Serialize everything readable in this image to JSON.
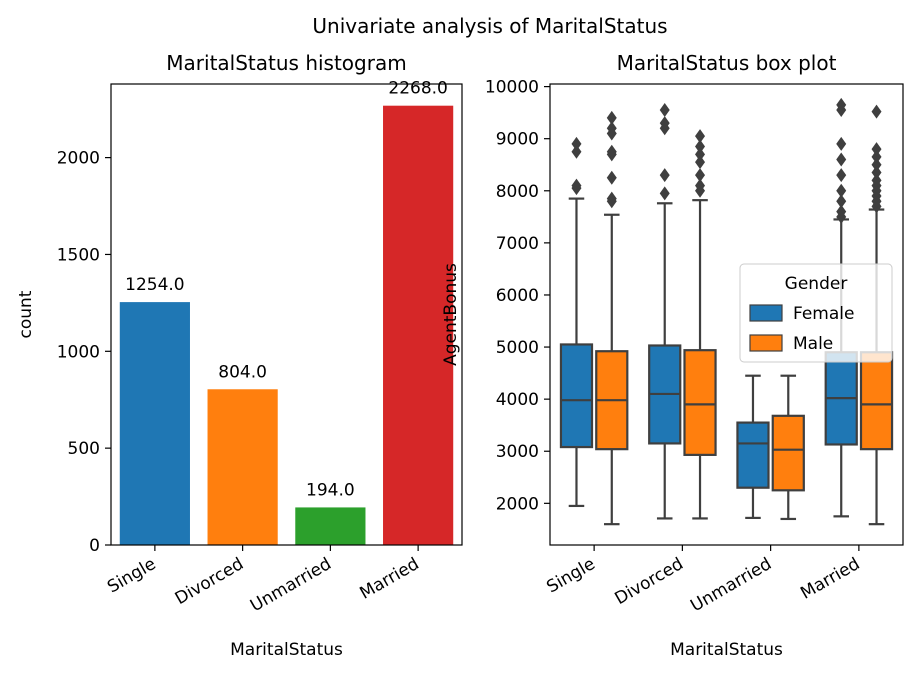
{
  "suptitle": "Univariate analysis of MaritalStatus",
  "chart_data": [
    {
      "type": "bar",
      "title": "MaritalStatus histogram",
      "xlabel": "MaritalStatus",
      "ylabel": "count",
      "categories": [
        "Single",
        "Divorced",
        "Unmarried",
        "Married"
      ],
      "values": [
        1254,
        804,
        194,
        2268
      ],
      "value_labels": [
        "1254.0",
        "804.0",
        "194.0",
        "2268.0"
      ],
      "colors": [
        "#1f77b4",
        "#ff7f0e",
        "#2ca02c",
        "#d62728"
      ],
      "ylim": [
        0,
        2380
      ],
      "yticks": [
        0,
        500,
        1000,
        1500,
        2000
      ],
      "grid": false
    },
    {
      "type": "box",
      "title": "MaritalStatus box plot",
      "xlabel": "MaritalStatus",
      "ylabel": "AgentBonus",
      "categories": [
        "Single",
        "Divorced",
        "Unmarried",
        "Married"
      ],
      "ylim": [
        1200,
        10050
      ],
      "yticks": [
        2000,
        3000,
        4000,
        5000,
        6000,
        7000,
        8000,
        9000,
        10000
      ],
      "legend": {
        "title": "Gender",
        "position": "center-right"
      },
      "series": [
        {
          "name": "Female",
          "color": "#1f77b4",
          "boxes": [
            {
              "whislo": 1950,
              "q1": 3080,
              "median": 3980,
              "q3": 5050,
              "whishi": 7850,
              "fliers": [
                8050,
                8100,
                8750,
                8900
              ]
            },
            {
              "whislo": 1710,
              "q1": 3150,
              "median": 4100,
              "q3": 5030,
              "whishi": 7760,
              "fliers": [
                7950,
                8300,
                9200,
                9300,
                9550
              ]
            },
            {
              "whislo": 1720,
              "q1": 2300,
              "median": 3150,
              "q3": 3550,
              "whishi": 4450,
              "fliers": []
            },
            {
              "whislo": 1750,
              "q1": 3130,
              "median": 4020,
              "q3": 4900,
              "whishi": 7450,
              "fliers": [
                7500,
                7600,
                7800,
                8000,
                8300,
                8600,
                8900,
                9550,
                9650
              ]
            }
          ]
        },
        {
          "name": "Male",
          "color": "#ff7f0e",
          "boxes": [
            {
              "whislo": 1600,
              "q1": 3040,
              "median": 3980,
              "q3": 4920,
              "whishi": 7540,
              "fliers": [
                7800,
                7850,
                8250,
                8700,
                8750,
                9100,
                9200,
                9400
              ]
            },
            {
              "whislo": 1710,
              "q1": 2930,
              "median": 3900,
              "q3": 4940,
              "whishi": 7820,
              "fliers": [
                8000,
                8100,
                8300,
                8550,
                8700,
                8850,
                9050
              ]
            },
            {
              "whislo": 1700,
              "q1": 2250,
              "median": 3030,
              "q3": 3680,
              "whishi": 4450,
              "fliers": []
            },
            {
              "whislo": 1600,
              "q1": 3040,
              "median": 3900,
              "q3": 4900,
              "whishi": 7640,
              "fliers": [
                7700,
                7800,
                7900,
                8000,
                8100,
                8200,
                8350,
                8500,
                8650,
                8800,
                9520
              ]
            }
          ]
        }
      ]
    }
  ]
}
